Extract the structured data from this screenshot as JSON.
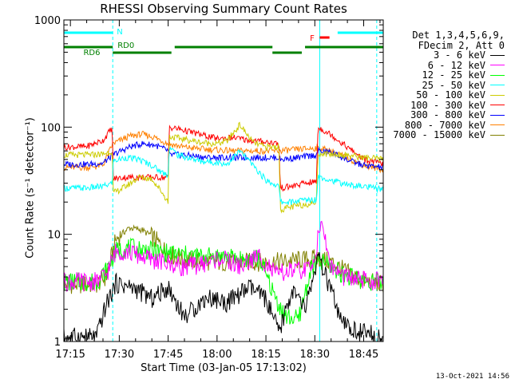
{
  "chart_data": {
    "type": "line",
    "title": "RHESSI Observing Summary Count Rates",
    "xlabel": "Start Time (03-Jan-05 17:13:02)",
    "ylabel": "Count Rate (s⁻¹ detector⁻¹)",
    "x_ticks": [
      "17:15",
      "17:30",
      "17:45",
      "18:00",
      "18:15",
      "18:30",
      "18:45"
    ],
    "x_tick_minutes": [
      0,
      15,
      30,
      45,
      60,
      75,
      90
    ],
    "xlim_minutes": [
      -2,
      96
    ],
    "y_scale": "log",
    "ylim": [
      1,
      1000
    ],
    "y_ticks": [
      "1",
      "10",
      "100",
      "1000"
    ],
    "legend_header": [
      "Det 1,3,4,5,6,9,",
      "FDecim 2, Att 0"
    ],
    "legend_position": "right",
    "series": [
      {
        "name": "3 - 6 keV",
        "color": "#000000",
        "x": [
          -2,
          8,
          11,
          14,
          20,
          25,
          30,
          35,
          42,
          48,
          55,
          60,
          64,
          68,
          72,
          76,
          80,
          83,
          86,
          90,
          96
        ],
        "y": [
          1.1,
          1.1,
          2.2,
          3.5,
          3.1,
          2.5,
          3.2,
          1.7,
          2.6,
          2.3,
          3.2,
          2.5,
          1.2,
          3.0,
          2.0,
          6.0,
          3.0,
          1.5,
          1.3,
          1.2,
          1.1
        ]
      },
      {
        "name": "6 - 12 keV",
        "color": "#ff00ff",
        "x": [
          -2,
          8,
          11,
          14,
          18,
          22,
          28,
          34,
          40,
          46,
          52,
          58,
          63,
          67,
          71,
          74,
          77,
          80,
          84,
          90,
          96
        ],
        "y": [
          3.6,
          3.6,
          4.2,
          7.0,
          6.8,
          6.2,
          5.5,
          5.0,
          5.2,
          6.0,
          5.0,
          6.3,
          4.2,
          4.5,
          4.6,
          4.8,
          13.0,
          5.0,
          4.0,
          3.7,
          3.6
        ]
      },
      {
        "name": "12 - 25 keV",
        "color": "#00ff00",
        "x": [
          -2,
          8,
          11,
          14,
          18,
          22,
          28,
          34,
          40,
          46,
          52,
          58,
          63,
          66,
          70,
          74,
          78,
          82,
          86,
          90,
          96
        ],
        "y": [
          3.6,
          3.6,
          4.6,
          7.0,
          7.5,
          7.2,
          6.8,
          6.5,
          6.2,
          6.3,
          5.8,
          6.0,
          2.5,
          1.7,
          1.6,
          5.0,
          5.5,
          4.5,
          4.0,
          3.7,
          3.6
        ]
      },
      {
        "name": "25 - 50 keV",
        "color": "#00ffff",
        "x": [
          -2,
          5,
          10,
          12.9,
          13,
          17,
          21,
          25,
          28,
          30,
          30.3,
          33,
          40,
          45,
          48,
          52,
          56,
          60,
          64,
          64.4,
          68,
          72,
          75.5,
          76,
          80,
          85,
          90,
          96
        ],
        "y": [
          27,
          27,
          28,
          30,
          48,
          52,
          50,
          44,
          38,
          36,
          65,
          55,
          48,
          47,
          45,
          60,
          44,
          32,
          28,
          20,
          20,
          21,
          21,
          35,
          32,
          29,
          28,
          26
        ]
      },
      {
        "name": "50 - 100 keV",
        "color": "#cccc00",
        "x": [
          -2,
          5,
          10,
          12.9,
          13,
          17,
          21,
          25,
          28,
          30,
          30.3,
          34,
          40,
          45,
          48,
          52,
          56,
          60,
          64,
          64.4,
          68,
          72,
          75.5,
          76,
          80,
          85,
          90,
          96
        ],
        "y": [
          55,
          55,
          56,
          60,
          24,
          28,
          34,
          33,
          25,
          20,
          82,
          78,
          72,
          70,
          74,
          105,
          72,
          65,
          66,
          17,
          18,
          19,
          20,
          57,
          56,
          55,
          52,
          50
        ]
      },
      {
        "name": "100 - 300 keV",
        "color": "#ff0000",
        "x": [
          -2,
          5,
          10,
          12.9,
          13,
          17,
          21,
          25,
          28,
          30,
          30.3,
          34,
          40,
          45,
          50,
          55,
          60,
          64,
          64.4,
          68,
          72,
          75.5,
          76,
          80,
          85,
          90,
          96
        ],
        "y": [
          65,
          66,
          75,
          100,
          33,
          34,
          34,
          34,
          34,
          34,
          100,
          95,
          85,
          78,
          80,
          75,
          73,
          70,
          27,
          28,
          30,
          31,
          100,
          85,
          65,
          50,
          45
        ]
      },
      {
        "name": "300 - 800 keV",
        "color": "#0000ff",
        "x": [
          -2,
          5,
          10,
          13,
          18,
          22,
          26,
          30,
          30.3,
          35,
          42,
          50,
          58,
          64,
          64.4,
          70,
          75.5,
          76,
          80,
          86,
          90,
          96
        ],
        "y": [
          45,
          45,
          46,
          55,
          65,
          70,
          68,
          60,
          55,
          55,
          52,
          52,
          52,
          52,
          50,
          52,
          55,
          60,
          58,
          48,
          44,
          42
        ]
      },
      {
        "name": "800 - 7000 keV",
        "color": "#ff8000",
        "x": [
          -2,
          5,
          10,
          13,
          18,
          22,
          26,
          30,
          35,
          42,
          50,
          58,
          64,
          70,
          76,
          80,
          86,
          90,
          96
        ],
        "y": [
          42,
          42,
          44,
          70,
          82,
          86,
          80,
          70,
          65,
          62,
          60,
          60,
          60,
          62,
          64,
          60,
          50,
          44,
          40
        ]
      },
      {
        "name": "7000 - 15000 keV",
        "color": "#808000",
        "x": [
          -2,
          8,
          11,
          14,
          18,
          22,
          26,
          30,
          35,
          45,
          55,
          62,
          66,
          72,
          76,
          80,
          86,
          90,
          96
        ],
        "y": [
          3.4,
          3.4,
          4.0,
          9.0,
          11.5,
          11.0,
          9.0,
          6.5,
          5.8,
          5.5,
          5.5,
          5.5,
          5.6,
          5.8,
          6.0,
          5.5,
          4.2,
          3.7,
          3.4
        ]
      }
    ],
    "annotations": [
      {
        "label": "N",
        "color": "#00ffff",
        "bars": [
          [
            -2,
            13
          ],
          [
            82,
            96
          ]
        ]
      },
      {
        "label": "RD0",
        "color": "#008000",
        "bars": [
          [
            -2,
            13
          ],
          [
            32,
            62
          ],
          [
            72,
            96
          ]
        ]
      },
      {
        "label": "RD6",
        "color": "#008000",
        "bars": [
          [
            13,
            31
          ],
          [
            62,
            71
          ]
        ]
      },
      {
        "label": "F",
        "color": "#ff0000",
        "bars": [
          [
            76.5,
            79.5
          ]
        ]
      }
    ],
    "vlines_solid": [
      -2,
      76.5
    ],
    "vlines_dashed": [
      13,
      94
    ]
  },
  "footer": {
    "date": "13-Oct-2021 14:56"
  }
}
